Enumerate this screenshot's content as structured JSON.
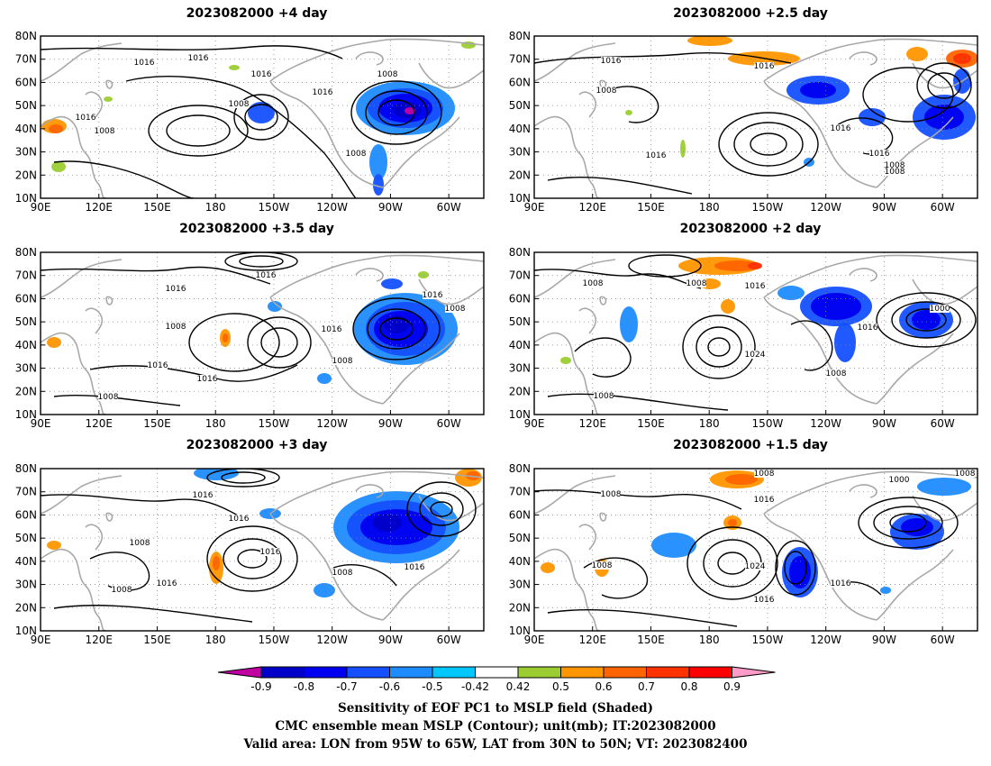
{
  "panels": [
    {
      "id": "p1",
      "title": "2023082000 +4 day"
    },
    {
      "id": "p2",
      "title": "2023082000 +2.5 day"
    },
    {
      "id": "p3",
      "title": "2023082000 +3.5 day"
    },
    {
      "id": "p4",
      "title": "2023082000 +2 day"
    },
    {
      "id": "p5",
      "title": "2023082000 +3 day"
    },
    {
      "id": "p6",
      "title": "2023082000 +1.5 day"
    }
  ],
  "lat_ticks": [
    "80N",
    "70N",
    "60N",
    "50N",
    "40N",
    "30N",
    "20N",
    "10N"
  ],
  "lon_ticks": [
    "90E",
    "120E",
    "150E",
    "180",
    "150W",
    "120W",
    "90W",
    "60W"
  ],
  "contour_labels": {
    "p1": [
      "1016",
      "1016",
      "1016",
      "1016",
      "1008",
      "1008",
      "1016",
      "1008",
      "1008"
    ],
    "p2": [
      "1016",
      "1016",
      "1008",
      "1016",
      "1008",
      "1016",
      "1016",
      "1008"
    ],
    "p3": [
      "1016",
      "1016",
      "1008",
      "1016",
      "1016",
      "1016",
      "1016",
      "1008",
      "1008",
      "1008"
    ],
    "p4": [
      "1008",
      "1008",
      "1016",
      "1000",
      "1016",
      "1024",
      "1008",
      "1008"
    ],
    "p5": [
      "1016",
      "1016",
      "1008",
      "1016",
      "1008",
      "1016",
      "1016",
      "1008"
    ],
    "p6": [
      "1008",
      "1008",
      "1016",
      "1000",
      "1024",
      "1016",
      "1016",
      "1008",
      "1008"
    ]
  },
  "colorbar": {
    "colors": [
      "#c000a0",
      "#0000c8",
      "#0000f0",
      "#1450ff",
      "#1e8cff",
      "#00c8ff",
      "#ffffff",
      "#9bcd32",
      "#ff9600",
      "#ff6400",
      "#ff3200",
      "#ff0000",
      "#ff9bc8"
    ],
    "labels": [
      "-0.9",
      "-0.8",
      "-0.7",
      "-0.6",
      "-0.5",
      "-0.42",
      "0.42",
      "0.5",
      "0.6",
      "0.7",
      "0.8",
      "0.9"
    ]
  },
  "footer": {
    "line1": "Sensitivity of EOF PC1 to MSLP field (Shaded)",
    "line2": "CMC ensemble mean MSLP (Contour); unit(mb); IT:2023082000",
    "line3": "Valid area: LON from 95W to 65W, LAT from 30N to 50N; VT: 2023082400"
  }
}
